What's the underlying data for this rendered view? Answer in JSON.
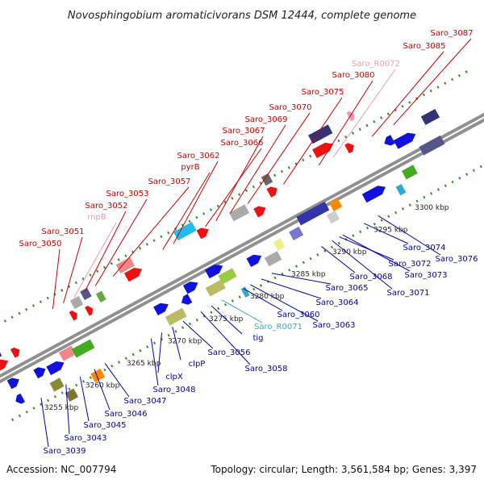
{
  "title": "Novosphingobium aromaticivorans DSM 12444, complete genome",
  "footer": {
    "accession": "Accession: NC_007794",
    "summary": "Topology: circular; Length: 3,561,584 bp; Genes: 3,397"
  },
  "colors": {
    "backbone": "#909090",
    "tick_dots": "#3a8a2a",
    "upper_label": "#cc0000",
    "upper_rna_label": "#ee99bb",
    "lower_label": "#0000aa",
    "lower_rna_label": "#33aacc"
  },
  "kbp_labels": [
    "3255 kbp",
    "3260 kbp",
    "3265 kbp",
    "3270 kbp",
    "3275 kbp",
    "3280 kbp",
    "3285 kbp",
    "3290 kbp",
    "3295 kbp",
    "3300 kbp"
  ],
  "upper_labels": [
    "Saro_3050",
    "Saro_3051",
    "rnpB",
    "Saro_3052",
    "Saro_3053",
    "Saro_3057",
    "pyrB",
    "Saro_3062",
    "Saro_3066",
    "Saro_3067",
    "Saro_3069",
    "Saro_3070",
    "Saro_3075",
    "Saro_3080",
    "Saro_R0072",
    "Saro_3085",
    "Saro_3087"
  ],
  "lower_labels": [
    "Saro_3039",
    "Saro_3043",
    "Saro_3045",
    "Saro_3046",
    "Saro_3047",
    "Saro_3048",
    "clpX",
    "clpP",
    "Saro_3056",
    "Saro_3058",
    "tig",
    "Saro_R0071",
    "Saro_3063",
    "Saro_3060",
    "Saro_3064",
    "Saro_3065",
    "Saro_3068",
    "Saro_3071",
    "Saro_3073",
    "Saro_3072",
    "Saro_3074",
    "Saro_3076"
  ]
}
